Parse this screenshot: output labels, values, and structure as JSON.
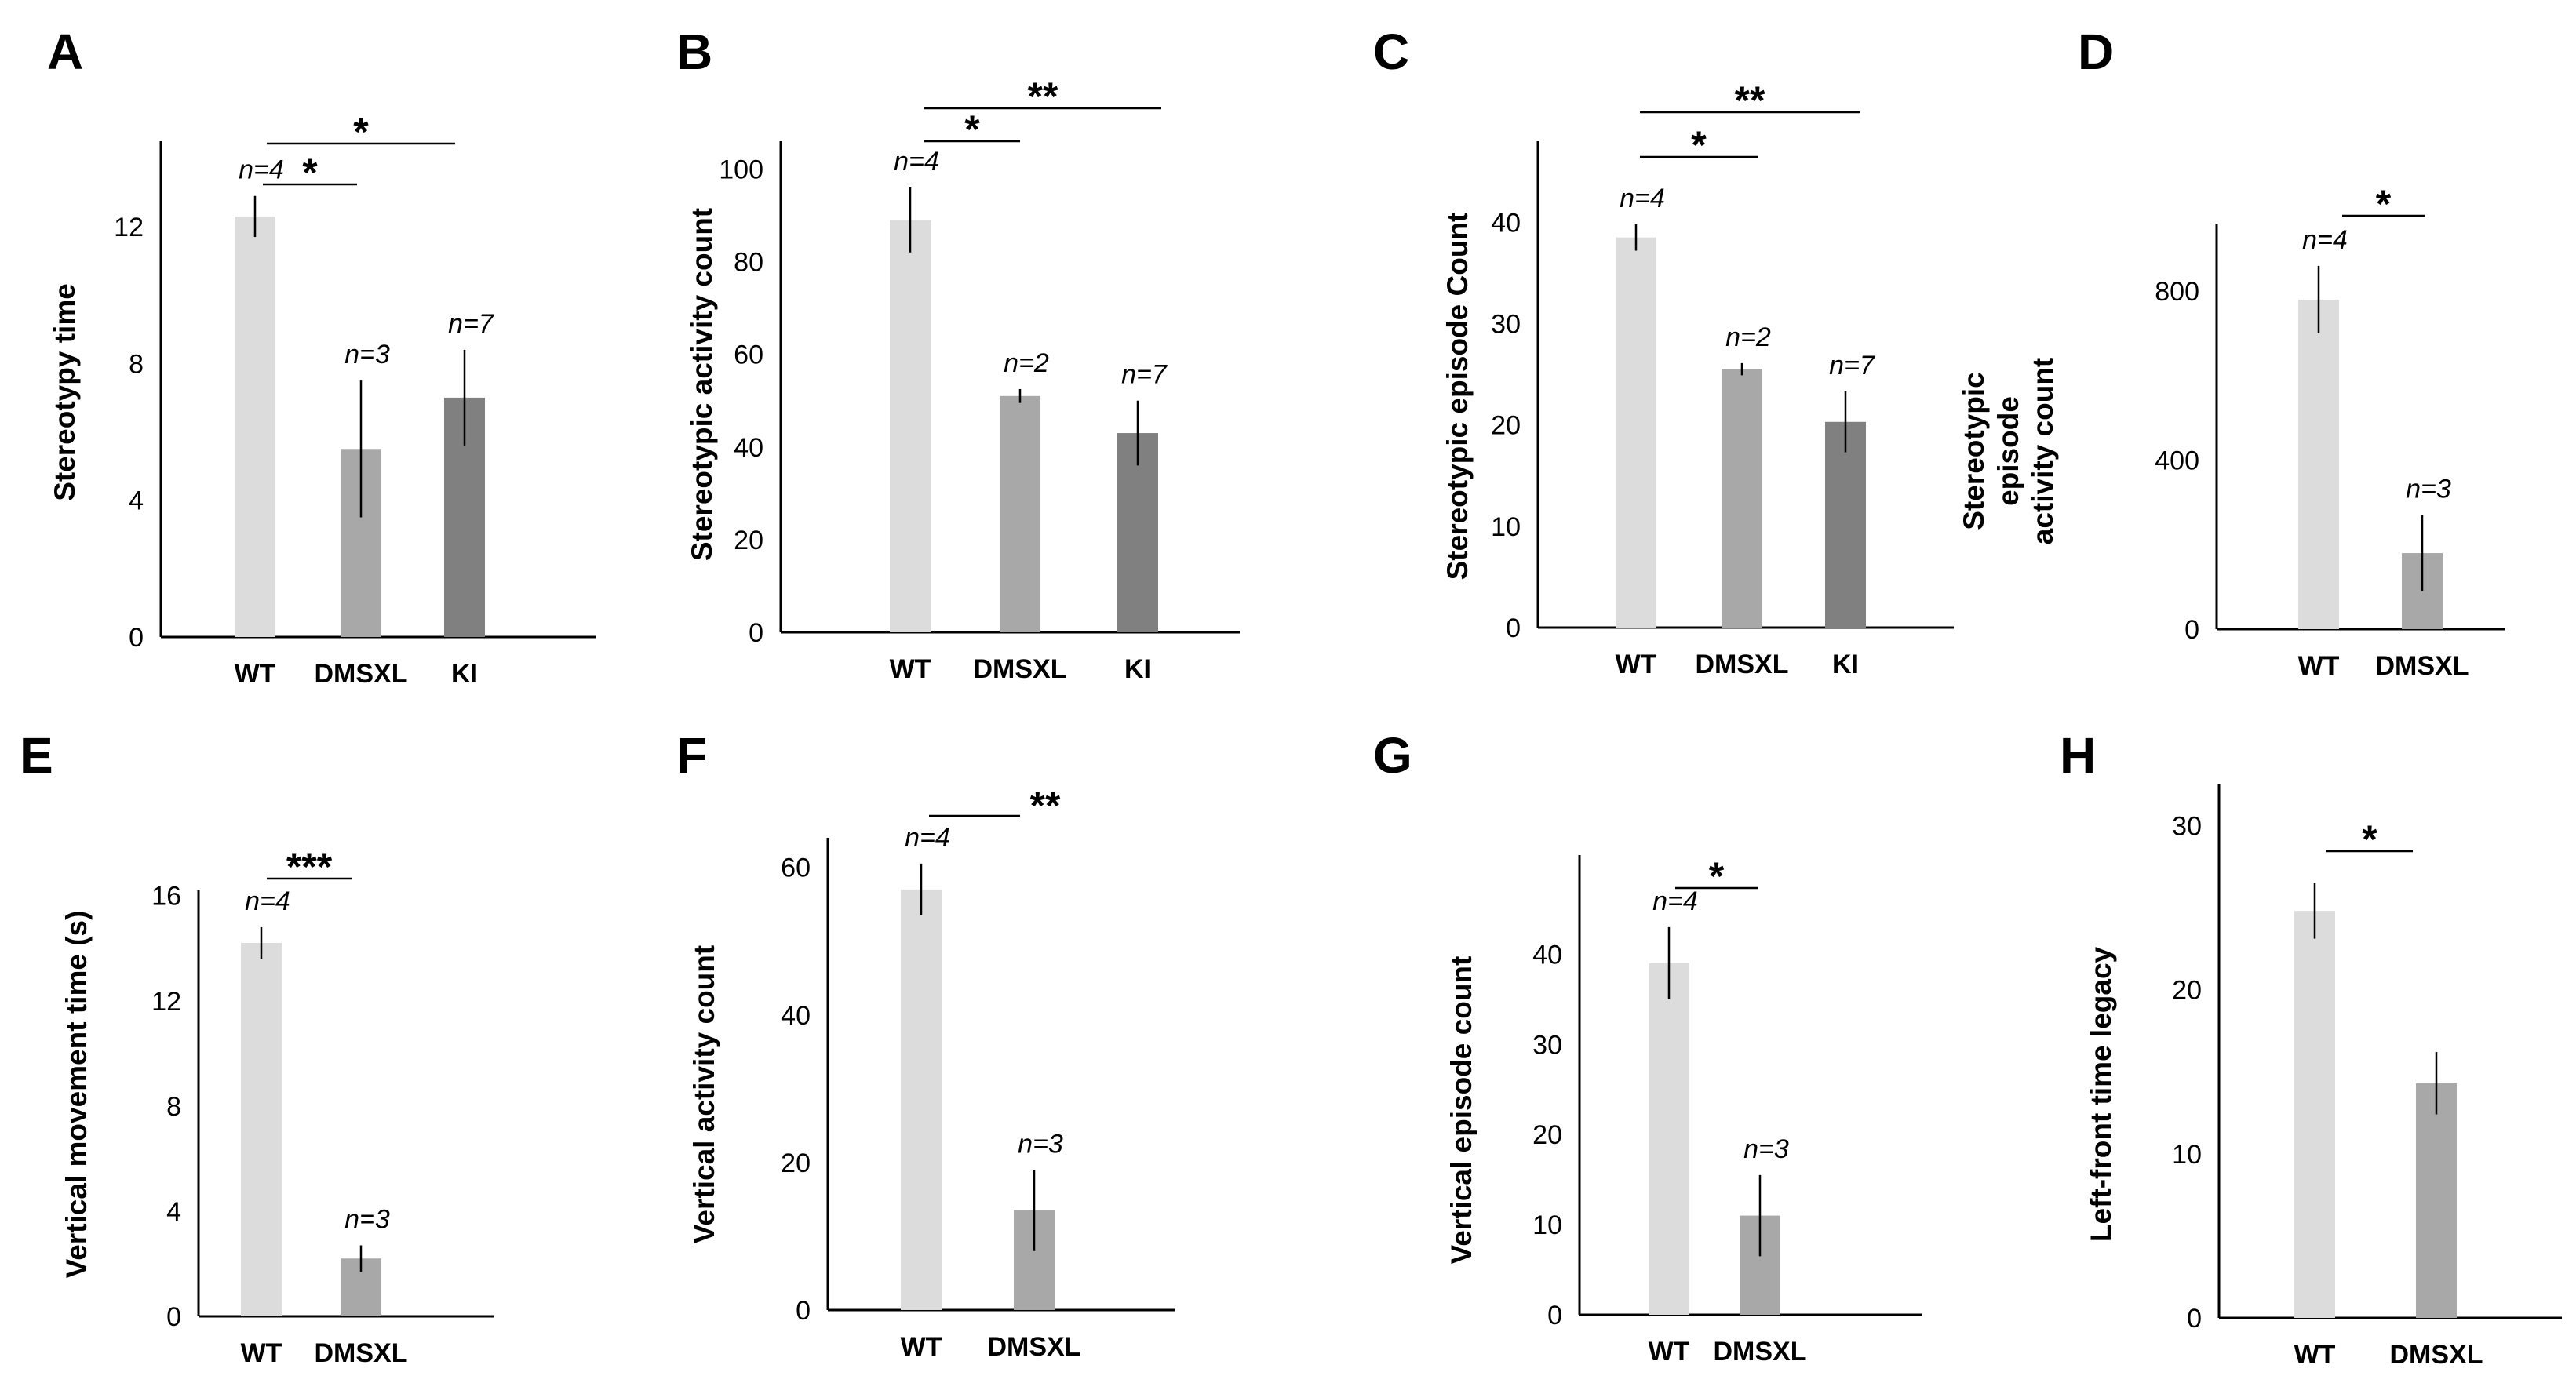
{
  "figure": {
    "panels": [
      {
        "letter": "A",
        "ylabel_lines": [
          "Stereotypy time"
        ],
        "ylim": [
          0,
          14.5
        ],
        "yticks": [
          0,
          4,
          8,
          12
        ]
      },
      {
        "letter": "B",
        "ylabel_lines": [
          "Stereotypic activity count"
        ],
        "ylim": [
          0,
          106
        ],
        "yticks": [
          0,
          20,
          40,
          60,
          80,
          100
        ]
      },
      {
        "letter": "C",
        "ylabel_lines": [
          "Stereotypic episode Count"
        ],
        "ylim": [
          0,
          48
        ],
        "yticks": [
          0,
          10,
          20,
          30,
          40
        ]
      },
      {
        "letter": "D",
        "ylabel_lines": [
          "Stereotypic",
          "episode",
          "activity count"
        ],
        "ylim": [
          0,
          960
        ],
        "yticks": [
          0,
          400,
          800
        ]
      },
      {
        "letter": "E",
        "ylabel_lines": [
          "Vertical movement time (s)"
        ],
        "ylim": [
          0,
          16.2
        ],
        "yticks": [
          0,
          4,
          8,
          12,
          16
        ]
      },
      {
        "letter": "F",
        "ylabel_lines": [
          "Vertical activity count"
        ],
        "ylim": [
          0,
          64
        ],
        "yticks": [
          0,
          20,
          40,
          60
        ]
      },
      {
        "letter": "G",
        "ylabel_lines": [
          "Vertical episode count"
        ],
        "ylim": [
          0,
          51
        ],
        "yticks": [
          0,
          10,
          20,
          30,
          40
        ]
      },
      {
        "letter": "H",
        "ylabel_lines": [
          "Left-front time legacy"
        ],
        "ylim": [
          0,
          32.5
        ],
        "yticks": [
          0,
          10,
          20,
          30
        ]
      }
    ]
  },
  "chart_data": [
    {
      "type": "bar",
      "panel": "A",
      "ylabel": "Stereotypy time",
      "categories": [
        "WT",
        "DMSXL",
        "KI"
      ],
      "values": [
        12.3,
        5.5,
        7.0
      ],
      "errors": [
        0.6,
        2.0,
        1.4
      ],
      "n_labels": [
        "n=4",
        "n=3",
        "n=7"
      ],
      "significance": [
        {
          "from": "WT",
          "to": "DMSXL",
          "label": "*"
        },
        {
          "from": "WT",
          "to": "KI",
          "label": "*"
        }
      ]
    },
    {
      "type": "bar",
      "panel": "B",
      "ylabel": "Stereotypic activity count",
      "categories": [
        "WT",
        "DMSXL",
        "KI"
      ],
      "values": [
        89,
        51,
        43
      ],
      "errors": [
        7,
        1.5,
        7
      ],
      "n_labels": [
        "n=4",
        "n=2",
        "n=7"
      ],
      "significance": [
        {
          "from": "WT",
          "to": "DMSXL",
          "label": "*"
        },
        {
          "from": "WT",
          "to": "KI",
          "label": "**"
        }
      ]
    },
    {
      "type": "bar",
      "panel": "C",
      "ylabel": "Stereotypic episode Count",
      "categories": [
        "WT",
        "DMSXL",
        "KI"
      ],
      "values": [
        38.5,
        25.5,
        20.3
      ],
      "errors": [
        1.3,
        0.6,
        3.0
      ],
      "n_labels": [
        "n=4",
        "n=2",
        "n=7"
      ],
      "significance": [
        {
          "from": "WT",
          "to": "DMSXL",
          "label": "*"
        },
        {
          "from": "WT",
          "to": "KI",
          "label": "**"
        }
      ]
    },
    {
      "type": "bar",
      "panel": "D",
      "ylabel": "Stereotypic episode activity count",
      "categories": [
        "WT",
        "DMSXL"
      ],
      "values": [
        780,
        180
      ],
      "errors": [
        80,
        90
      ],
      "n_labels": [
        "n=4",
        "n=3"
      ],
      "significance": [
        {
          "from": "WT",
          "to": "DMSXL",
          "label": "*"
        }
      ]
    },
    {
      "type": "bar",
      "panel": "E",
      "ylabel": "Vertical movement time (s)",
      "categories": [
        "WT",
        "DMSXL"
      ],
      "values": [
        14.2,
        2.2
      ],
      "errors": [
        0.6,
        0.5
      ],
      "n_labels": [
        "n=4",
        "n=3"
      ],
      "significance": [
        {
          "from": "WT",
          "to": "DMSXL",
          "label": "***"
        }
      ]
    },
    {
      "type": "bar",
      "panel": "F",
      "ylabel": "Vertical activity count",
      "categories": [
        "WT",
        "DMSXL"
      ],
      "values": [
        57,
        13.5
      ],
      "errors": [
        3.5,
        5.5
      ],
      "n_labels": [
        "n=4",
        "n=3"
      ],
      "significance": [
        {
          "from": "WT",
          "to": "DMSXL",
          "label": "**"
        }
      ]
    },
    {
      "type": "bar",
      "panel": "G",
      "ylabel": "Vertical episode count",
      "categories": [
        "WT",
        "DMSXL"
      ],
      "values": [
        39,
        11
      ],
      "errors": [
        4,
        4.5
      ],
      "n_labels": [
        "n=4",
        "n=3"
      ],
      "significance": [
        {
          "from": "WT",
          "to": "DMSXL",
          "label": "*"
        }
      ]
    },
    {
      "type": "bar",
      "panel": "H",
      "ylabel": "Left-front time legacy",
      "categories": [
        "WT",
        "DMSXL"
      ],
      "values": [
        24.8,
        14.3
      ],
      "errors": [
        1.7,
        1.9
      ],
      "n_labels": [],
      "significance": [
        {
          "from": "WT",
          "to": "DMSXL",
          "label": "*"
        }
      ]
    }
  ],
  "colors": {
    "WT": "#dcdcdc",
    "DMSXL": "#a8a8a8",
    "KI": "#808080",
    "axis": "#000000"
  }
}
